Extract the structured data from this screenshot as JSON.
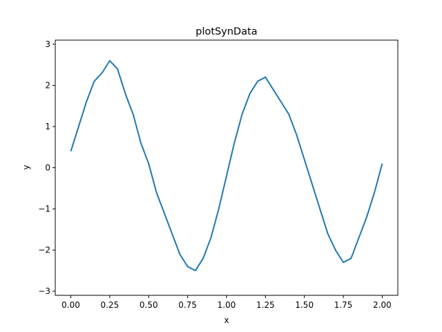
{
  "chart_data": {
    "type": "line",
    "title": "plotSynData",
    "xlabel": "x",
    "ylabel": "y",
    "xlim": [
      -0.1,
      2.1
    ],
    "ylim": [
      -3.1,
      3.1
    ],
    "grid": false,
    "legend": "none",
    "x_ticks": [
      0.0,
      0.25,
      0.5,
      0.75,
      1.0,
      1.25,
      1.5,
      1.75,
      2.0
    ],
    "x_tick_labels": [
      "0.00",
      "0.25",
      "0.50",
      "0.75",
      "1.00",
      "1.25",
      "1.50",
      "1.75",
      "2.00"
    ],
    "y_ticks": [
      -3,
      -2,
      -1,
      0,
      1,
      2,
      3
    ],
    "y_tick_labels": [
      "−3",
      "−2",
      "−1",
      "0",
      "1",
      "2",
      "3"
    ],
    "series": [
      {
        "color": "#1f77b4",
        "x": [
          0.0,
          0.05,
          0.1,
          0.15,
          0.2,
          0.25,
          0.3,
          0.35,
          0.4,
          0.45,
          0.5,
          0.55,
          0.6,
          0.65,
          0.7,
          0.75,
          0.8,
          0.85,
          0.9,
          0.95,
          1.0,
          1.05,
          1.1,
          1.15,
          1.2,
          1.25,
          1.3,
          1.35,
          1.4,
          1.45,
          1.5,
          1.55,
          1.6,
          1.65,
          1.7,
          1.75,
          1.8,
          1.85,
          1.9,
          1.95,
          2.0
        ],
        "y": [
          0.4,
          1.0,
          1.6,
          2.1,
          2.3,
          2.6,
          2.4,
          1.8,
          1.3,
          0.6,
          0.1,
          -0.6,
          -1.1,
          -1.6,
          -2.1,
          -2.4,
          -2.5,
          -2.2,
          -1.7,
          -1.0,
          -0.2,
          0.6,
          1.3,
          1.8,
          2.1,
          2.2,
          1.9,
          1.6,
          1.3,
          0.8,
          0.2,
          -0.4,
          -1.0,
          -1.6,
          -2.0,
          -2.3,
          -2.2,
          -1.7,
          -1.2,
          -0.6,
          0.1
        ]
      }
    ]
  }
}
